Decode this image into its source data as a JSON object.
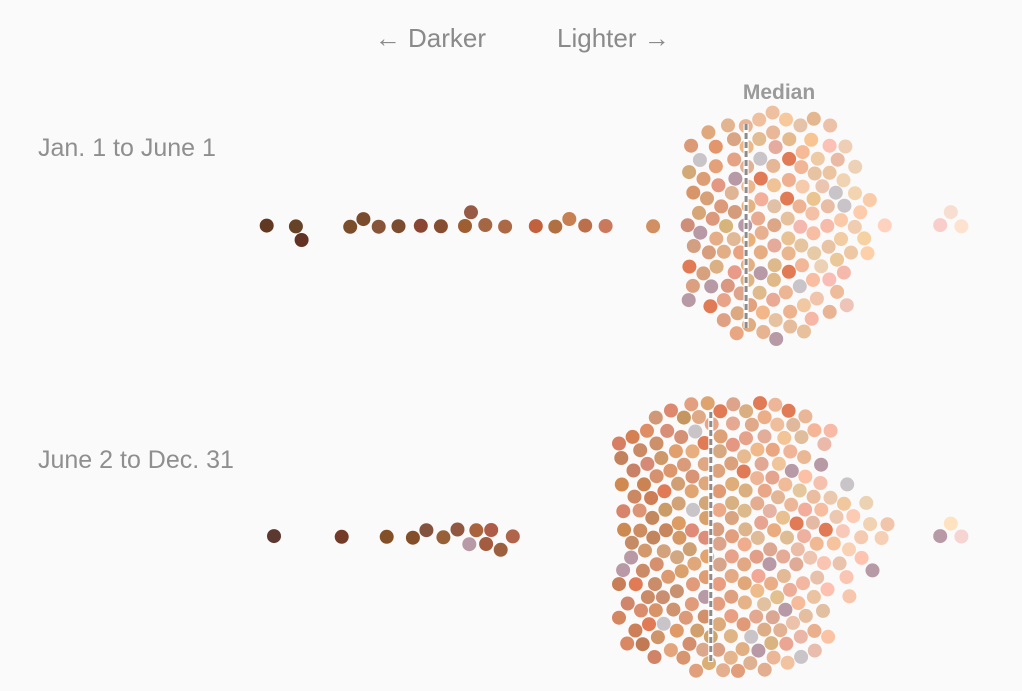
{
  "chart_data": {
    "type": "scatter",
    "subtype": "beeswarm",
    "axis": {
      "left_label": "← Darker",
      "right_label": "Lighter →"
    },
    "median_label": "Median",
    "color_scale": {
      "dark": "#5a3228",
      "mid_dark": "#b86a44",
      "mid": "#dca07a",
      "light": "#f4c8ac",
      "lightest": "#fbe2d4",
      "accent": "#e07b55",
      "outlier_mauve": "#b79aa6",
      "outlier_gray": "#c9c4c8"
    },
    "grid": false,
    "legend": "none",
    "xlim": [
      0,
      1
    ],
    "groups": [
      {
        "label": "Jan. 1 to June 1",
        "count": 380,
        "median": 0.68,
        "density_center": 0.72,
        "density_spread": 0.11,
        "max_width": 0.35,
        "dark_tail": [
          0.0,
          0.04,
          0.05,
          0.12,
          0.14,
          0.16,
          0.19,
          0.22,
          0.25,
          0.28,
          0.29,
          0.31,
          0.34,
          0.38,
          0.41,
          0.43,
          0.45,
          0.48
        ],
        "light_tail": [
          0.955,
          0.97,
          0.985
        ]
      },
      {
        "label": "June 2 to Dec. 31",
        "count": 730,
        "median": 0.63,
        "density_center": 0.66,
        "density_spread": 0.15,
        "max_width": 0.41,
        "dark_tail": [
          0.01,
          0.11,
          0.17,
          0.21,
          0.23,
          0.25,
          0.27,
          0.29,
          0.3,
          0.31,
          0.32,
          0.33,
          0.35
        ],
        "light_tail": [
          0.955,
          0.97,
          0.985
        ]
      }
    ]
  }
}
